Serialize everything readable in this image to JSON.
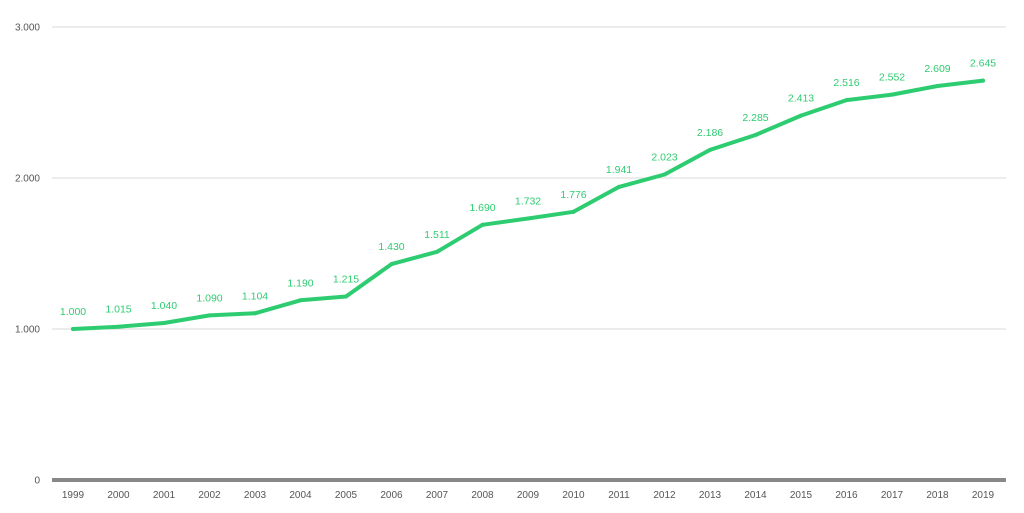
{
  "chart_data": {
    "type": "line",
    "title": "",
    "xlabel": "",
    "ylabel": "",
    "x": [
      "1999",
      "2000",
      "2001",
      "2002",
      "2003",
      "2004",
      "2005",
      "2006",
      "2007",
      "2008",
      "2009",
      "2010",
      "2011",
      "2012",
      "2013",
      "2014",
      "2015",
      "2016",
      "2017",
      "2018",
      "2019"
    ],
    "series": [
      {
        "values": [
          1000,
          1015,
          1040,
          1090,
          1104,
          1190,
          1215,
          1430,
          1511,
          1690,
          1732,
          1776,
          1941,
          2023,
          2186,
          2285,
          2413,
          2516,
          2552,
          2609,
          2645
        ],
        "labels": [
          "1.000",
          "1.015",
          "1.040",
          "1.090",
          "1.104",
          "1.190",
          "1.215",
          "1.430",
          "1.511",
          "1.690",
          "1.732",
          "1.776",
          "1.941",
          "2.023",
          "2.186",
          "2.285",
          "2.413",
          "2.516",
          "2.552",
          "2.609",
          "2.645"
        ],
        "color": "#2ecc71"
      }
    ],
    "ylim": [
      0,
      3000
    ],
    "yticks": [
      0,
      1000,
      2000,
      3000
    ],
    "ytick_labels": [
      "0",
      "1.000",
      "2.000",
      "3.000"
    ],
    "grid": true,
    "legend": "none",
    "colors": {
      "line": "#2ecc71",
      "data_label": "#2ecc71",
      "gridline": "#d9d9d9",
      "baseline": "#888888",
      "tick_text": "#555555"
    }
  }
}
